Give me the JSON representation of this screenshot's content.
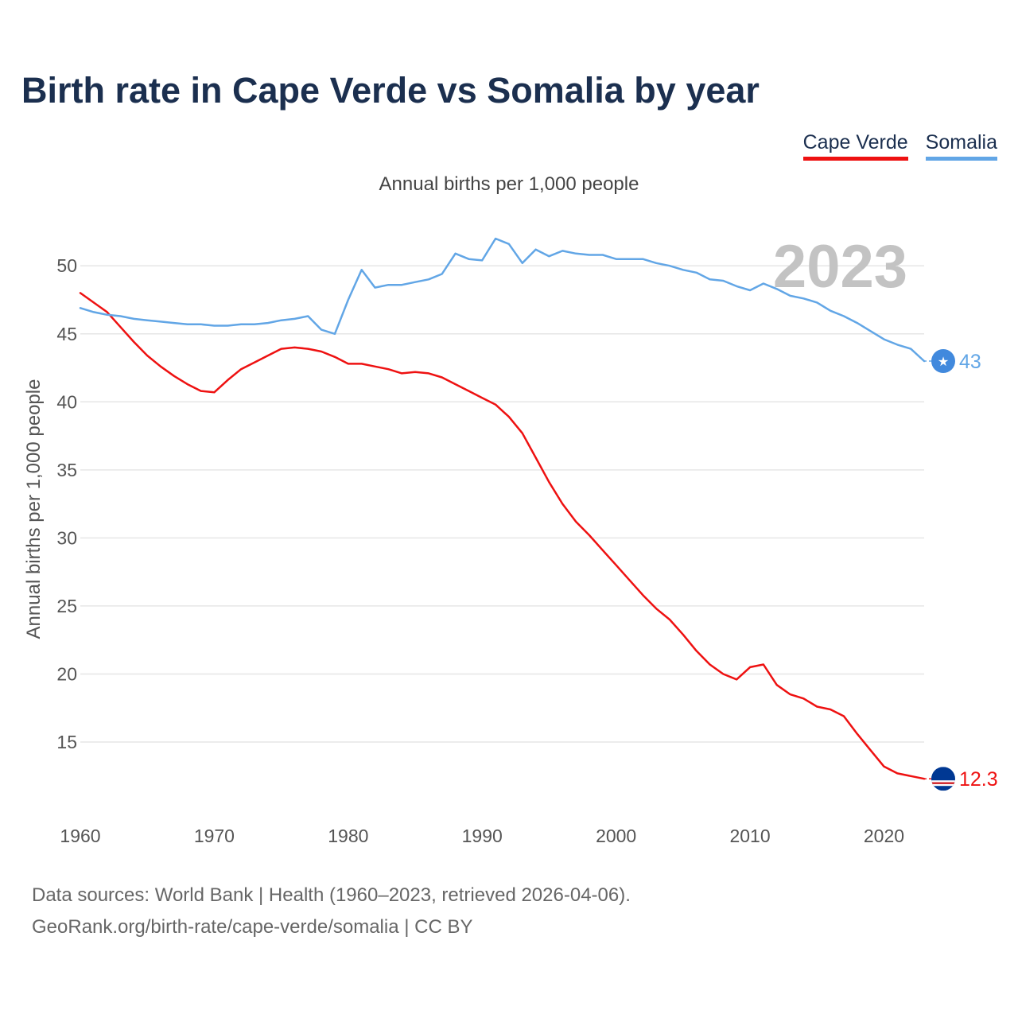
{
  "title": "Birth rate in Cape Verde vs Somalia by year",
  "subtitle": "Annual births per 1,000 people",
  "current_year": "2023",
  "footer": {
    "sources": "Data sources: World Bank | Health (1960–2023, retrieved 2026-04-06).",
    "link": "GeoRank.org/birth-rate/cape-verde/somalia | CC BY"
  },
  "legend": [
    {
      "label": "Cape Verde",
      "color": "#ee1111"
    },
    {
      "label": "Somalia",
      "color": "#62a6e6"
    }
  ],
  "chart_data": {
    "type": "line",
    "title": "Birth rate in Cape Verde vs Somalia by year",
    "ylabel": "Annual births per 1,000 people",
    "xlabel": "",
    "xlim": [
      1960,
      2023
    ],
    "ylim": [
      10.5,
      52
    ],
    "x_ticks": [
      1960,
      1970,
      1980,
      1990,
      2000,
      2010,
      2020
    ],
    "y_ticks": [
      15,
      20,
      25,
      30,
      35,
      40,
      45,
      50
    ],
    "x": [
      1960,
      1961,
      1962,
      1963,
      1964,
      1965,
      1966,
      1967,
      1968,
      1969,
      1970,
      1971,
      1972,
      1973,
      1974,
      1975,
      1976,
      1977,
      1978,
      1979,
      1980,
      1981,
      1982,
      1983,
      1984,
      1985,
      1986,
      1987,
      1988,
      1989,
      1990,
      1991,
      1992,
      1993,
      1994,
      1995,
      1996,
      1997,
      1998,
      1999,
      2000,
      2001,
      2002,
      2003,
      2004,
      2005,
      2006,
      2007,
      2008,
      2009,
      2010,
      2011,
      2012,
      2013,
      2014,
      2015,
      2016,
      2017,
      2018,
      2019,
      2020,
      2021,
      2022,
      2023
    ],
    "series": [
      {
        "name": "Cape Verde",
        "color": "#ee1111",
        "end_label": "12.3",
        "values": [
          48.0,
          47.3,
          46.6,
          45.5,
          44.4,
          43.4,
          42.6,
          41.9,
          41.3,
          40.8,
          40.7,
          41.6,
          42.4,
          42.9,
          43.4,
          43.9,
          44.0,
          43.9,
          43.7,
          43.3,
          42.8,
          42.8,
          42.6,
          42.4,
          42.1,
          42.2,
          42.1,
          41.8,
          41.3,
          40.8,
          40.3,
          39.8,
          38.9,
          37.7,
          35.9,
          34.1,
          32.5,
          31.2,
          30.2,
          29.1,
          28.0,
          26.9,
          25.8,
          24.8,
          24.0,
          22.9,
          21.7,
          20.7,
          20.0,
          19.6,
          20.5,
          20.7,
          19.2,
          18.5,
          18.2,
          17.6,
          17.4,
          16.9,
          15.6,
          14.4,
          13.2,
          12.7,
          12.5,
          12.3
        ]
      },
      {
        "name": "Somalia",
        "color": "#62a6e6",
        "end_label": "43",
        "values": [
          46.9,
          46.6,
          46.4,
          46.3,
          46.1,
          46.0,
          45.9,
          45.8,
          45.7,
          45.7,
          45.6,
          45.6,
          45.7,
          45.7,
          45.8,
          46.0,
          46.1,
          46.3,
          45.3,
          45.0,
          47.5,
          49.7,
          48.4,
          48.6,
          48.6,
          48.8,
          49.0,
          49.4,
          50.9,
          50.5,
          50.4,
          52.0,
          51.6,
          50.2,
          51.2,
          50.7,
          51.1,
          50.9,
          50.8,
          50.8,
          50.5,
          50.5,
          50.5,
          50.2,
          50.0,
          49.7,
          49.5,
          49.0,
          48.9,
          48.5,
          48.2,
          48.7,
          48.3,
          47.8,
          47.6,
          47.3,
          46.7,
          46.3,
          45.8,
          45.2,
          44.6,
          44.2,
          43.9,
          43.0
        ]
      }
    ]
  }
}
